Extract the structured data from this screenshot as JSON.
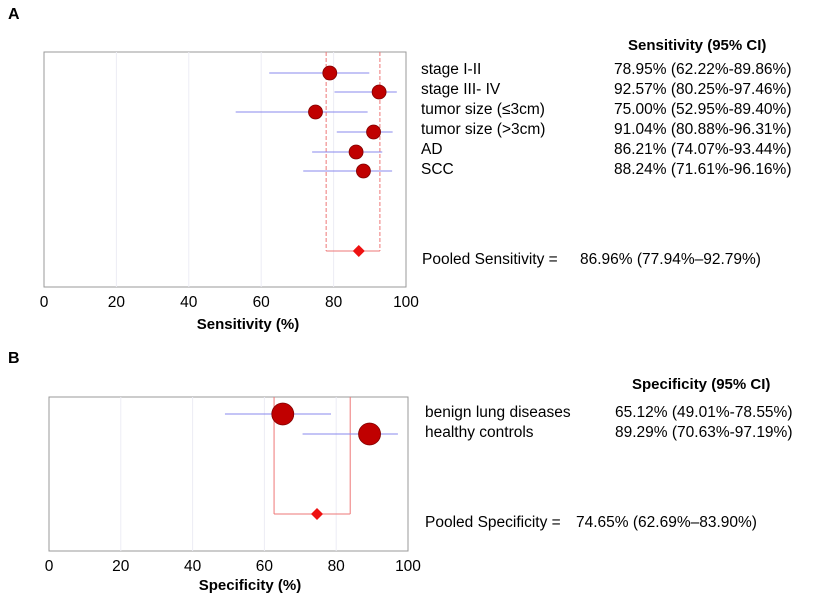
{
  "chart_data": [
    {
      "type": "forest",
      "panel": "A",
      "header": "Sensitivity (95% CI)",
      "xlabel": "Sensitivity (%)",
      "xlim": [
        0,
        100
      ],
      "xticks": [
        "0",
        "20",
        "40",
        "60",
        "80",
        "100"
      ],
      "rows": [
        {
          "label": "stage I-II",
          "estimate": 78.95,
          "lower": 62.22,
          "upper": 89.86,
          "text": "78.95% (62.22%-89.86%)"
        },
        {
          "label": "stage III- IV",
          "estimate": 92.57,
          "lower": 80.25,
          "upper": 97.46,
          "text": "92.57% (80.25%-97.46%)"
        },
        {
          "label": "tumor size (≤3cm)",
          "estimate": 75.0,
          "lower": 52.95,
          "upper": 89.4,
          "text": "75.00% (52.95%-89.40%)"
        },
        {
          "label": "tumor size (>3cm)",
          "estimate": 91.04,
          "lower": 80.88,
          "upper": 96.31,
          "text": "91.04% (80.88%-96.31%)"
        },
        {
          "label": "AD",
          "estimate": 86.21,
          "lower": 74.07,
          "upper": 93.44,
          "text": "86.21% (74.07%-93.44%)"
        },
        {
          "label": "SCC",
          "estimate": 88.24,
          "lower": 71.61,
          "upper": 96.16,
          "text": "88.24% (71.61%-96.16%)"
        }
      ],
      "pooled": {
        "label": "Pooled Sensitivity =",
        "estimate": 86.96,
        "lower": 77.94,
        "upper": 92.79,
        "text": "86.96% (77.94%–92.79%)"
      }
    },
    {
      "type": "forest",
      "panel": "B",
      "header": "Specificity (95% CI)",
      "xlabel": "Specificity (%)",
      "xlim": [
        0,
        100
      ],
      "xticks": [
        "0",
        "20",
        "40",
        "60",
        "80",
        "100"
      ],
      "rows": [
        {
          "label": "benign lung diseases",
          "estimate": 65.12,
          "lower": 49.01,
          "upper": 78.55,
          "text": "65.12% (49.01%-78.55%)"
        },
        {
          "label": "healthy controls",
          "estimate": 89.29,
          "lower": 70.63,
          "upper": 97.19,
          "text": "89.29% (70.63%-97.19%)"
        }
      ],
      "pooled": {
        "label": "Pooled Specificity =",
        "estimate": 74.65,
        "lower": 62.69,
        "upper": 83.9,
        "text": "74.65% (62.69%–83.90%)"
      }
    }
  ],
  "colors": {
    "marker": "#c00000",
    "ci_line": "#8888ee",
    "pooled_marker": "#ee1111",
    "pooled_box": "#ee7777",
    "grid": "#ececf4"
  }
}
